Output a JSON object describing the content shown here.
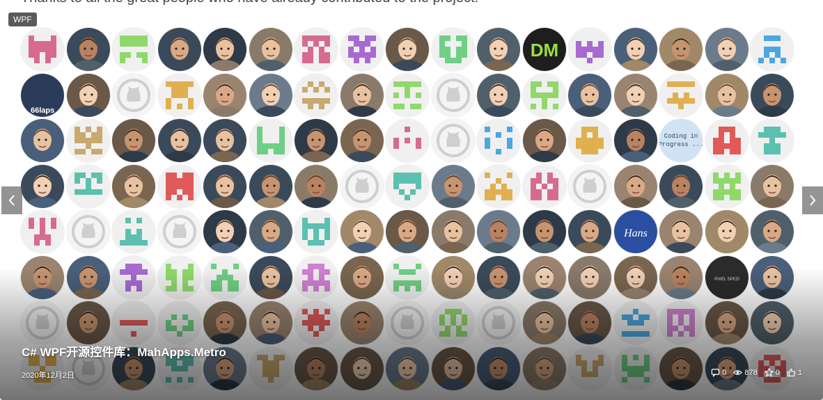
{
  "top_text": "Thanks to all the great people who have already contributed to the project.",
  "tag": "WPF",
  "title": "C# WPF开源控件库：MahApps.Metro",
  "date": "2020年12月2日",
  "stats": {
    "comments": "0",
    "views": "878",
    "favorites": "0",
    "likes": "1"
  },
  "icons": {
    "prev": "chevron-left-icon",
    "next": "chevron-right-icon",
    "comments": "comment-icon",
    "views": "eye-icon",
    "favorites": "star-icon",
    "likes": "thumbs-up-icon"
  },
  "avatar_text": {
    "dm": "DM",
    "coding": "Coding in Progress ...",
    "laps": "66laps",
    "hans": "Hans",
    "pixel": "PIXEL SPEZI"
  },
  "colors": {
    "tag_bg": "#5a5a5a",
    "nav_bg": "#5a5a5a"
  }
}
